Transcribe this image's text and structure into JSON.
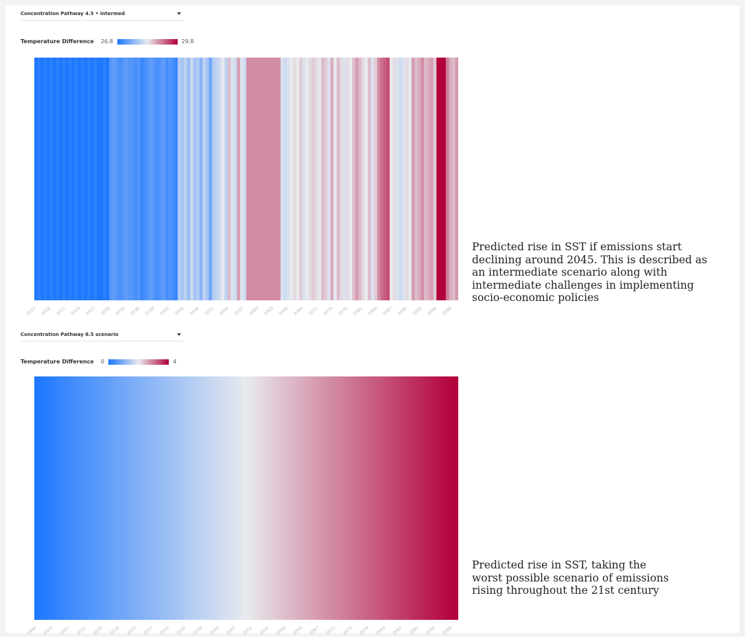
{
  "chart1": {
    "dropdown_label": "Concentration Pathway 4.5 • intermed",
    "legend": {
      "title": "Temperature Difference",
      "min_label": "26.8",
      "max_label": "29.8"
    },
    "caption_lines": [
      "Predicted rise in SST if emissions start",
      "declining around 2045. This is described as",
      "an intermediate scenario along with",
      "intermediate challenges in implementing",
      "socio-economic policies"
    ]
  },
  "chart2": {
    "dropdown_label": "Concentration Pathway 8.5 scenario",
    "legend": {
      "title": "Temperature Difference",
      "min_label": "0",
      "max_label": "4"
    },
    "caption_lines": [
      "Predicted rise in SST, taking the",
      "worst possible scenario of emissions",
      "rising throughout the 21st century"
    ]
  },
  "colors": {
    "cold": "#1e78ff",
    "neutral": "#e8eaee",
    "warm": "#b3003a"
  },
  "chart_data": [
    {
      "type": "heatmap",
      "title": "",
      "xlabel": "",
      "ylabel": "",
      "colorbar_label": "Temperature Difference",
      "color_range": [
        26.8,
        29.8
      ],
      "x_start": 2015,
      "x_end": 2100,
      "tick_labels": [
        "2015",
        "2018",
        "2021",
        "2024",
        "2027",
        "2030",
        "2033",
        "2036",
        "2039",
        "2042",
        "2045",
        "2048",
        "2051",
        "2054",
        "2057",
        "2060",
        "2063",
        "2066",
        "2069",
        "2072",
        "2075",
        "2078",
        "2081",
        "2084",
        "2087",
        "2090",
        "2093",
        "2096",
        "2099"
      ],
      "values": [
        26.8,
        26.9,
        26.8,
        26.9,
        26.8,
        26.9,
        26.8,
        26.9,
        26.8,
        26.9,
        26.8,
        26.9,
        26.8,
        26.9,
        26.8,
        26.9,
        26.8,
        26.9,
        26.8,
        26.9,
        26.8,
        26.8,
        26.9,
        26.8,
        27.2,
        27.3,
        27.2,
        27.1,
        27.2,
        27.3,
        27.2,
        27.2,
        27.1,
        27.2,
        27.0,
        27.1,
        27.2,
        27.3,
        27.2,
        27.1,
        27.2,
        27.3,
        27.1,
        27.2,
        27.1,
        27.0,
        27.9,
        27.8,
        28.0,
        27.7,
        28.1,
        27.8,
        27.9,
        27.6,
        28.0,
        27.8,
        27.4,
        27.9,
        28.0,
        28.1,
        28.3,
        28.0,
        28.6,
        28.2,
        28.1,
        28.8,
        28.2,
        28.1,
        28.9,
        28.9,
        28.9,
        28.9,
        28.9,
        28.9,
        28.9,
        28.9,
        28.9,
        28.9,
        28.9,
        28.2,
        28.1,
        28.2,
        28.3,
        28.4,
        28.3,
        28.5,
        28.2,
        28.3,
        28.4,
        28.5,
        28.4,
        28.3,
        28.6,
        28.5,
        28.2,
        28.7,
        28.3,
        28.6,
        28.4,
        28.2,
        28.4,
        28.3,
        28.6,
        28.8,
        28.6,
        28.4,
        28.3,
        28.6,
        28.2,
        28.5,
        28.9,
        29.1,
        29.2,
        29.3,
        28.3,
        28.4,
        28.2,
        28.1,
        28.2,
        28.4,
        28.3,
        28.8,
        28.6,
        28.7,
        28.9,
        28.6,
        28.7,
        28.8,
        28.5,
        29.8,
        29.8,
        29.8,
        29.0,
        28.7,
        28.6,
        28.8
      ]
    },
    {
      "type": "heatmap",
      "title": "",
      "xlabel": "",
      "ylabel": "",
      "colorbar_label": "Temperature Difference",
      "color_range": [
        0,
        4
      ],
      "x_start": 1999,
      "x_end": 2100,
      "tick_labels": [
        "1999",
        "2003",
        "2007",
        "2011",
        "2015",
        "2019",
        "2023",
        "2027",
        "2031",
        "2035",
        "2039",
        "2043",
        "2047",
        "2051",
        "2055",
        "2059",
        "2063",
        "2067",
        "2071",
        "2075",
        "2079",
        "2083",
        "2087",
        "2091",
        "2095",
        "2099"
      ],
      "values_trend": "monotonically rising from 0.0 in 1999 to 4.0 in 2100"
    }
  ]
}
